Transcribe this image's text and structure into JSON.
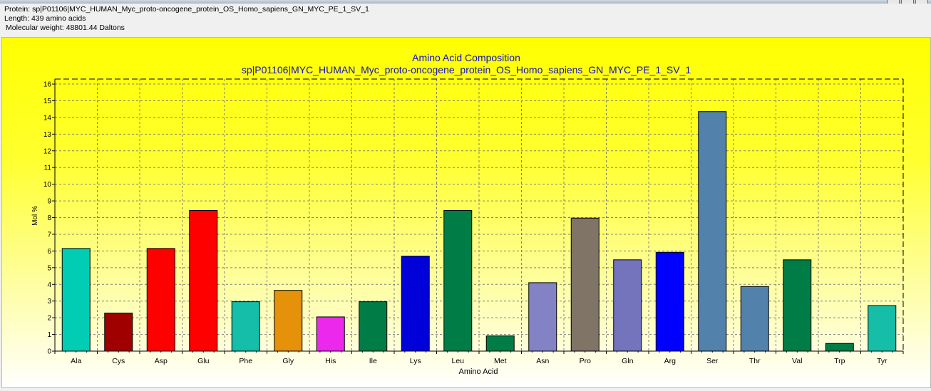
{
  "window": {
    "info": {
      "protein_line": "Protein: sp|P01106|MYC_HUMAN_Myc_proto-oncogene_protein_OS_Homo_sapiens_GN_MYC_PE_1_SV_1",
      "length_line": "Length: 439 amino acids",
      "weight_line": "Molecular weight: 48801.44 Daltons"
    }
  },
  "chart_data": {
    "type": "bar",
    "title": "Amino Acid Composition",
    "subtitle": "sp|P01106|MYC_HUMAN_Myc_proto-oncogene_protein_OS_Homo_sapiens_GN_MYC_PE_1_SV_1",
    "xlabel": "Amino Acid",
    "ylabel": "Mol %",
    "ylim": [
      0,
      16.3
    ],
    "yticks": [
      0,
      1,
      2,
      3,
      4,
      5,
      6,
      7,
      8,
      9,
      10,
      11,
      12,
      13,
      14,
      15,
      16
    ],
    "grid": true,
    "legend": "none",
    "categories": [
      "Ala",
      "Cys",
      "Asp",
      "Glu",
      "Phe",
      "Gly",
      "His",
      "Ile",
      "Lys",
      "Leu",
      "Met",
      "Asn",
      "Pro",
      "Gln",
      "Arg",
      "Ser",
      "Thr",
      "Val",
      "Trp",
      "Tyr"
    ],
    "values": [
      6.15,
      2.28,
      6.15,
      8.43,
      2.96,
      3.64,
      2.05,
      2.96,
      5.69,
      8.43,
      0.91,
      4.1,
      7.97,
      5.47,
      5.92,
      14.35,
      3.87,
      5.47,
      0.46,
      2.73
    ],
    "colors": [
      "#00cdb4",
      "#a00000",
      "#ff0000",
      "#ff0000",
      "#15bea8",
      "#e5920a",
      "#ec28ec",
      "#007d46",
      "#0000d8",
      "#007d46",
      "#007d46",
      "#8282c4",
      "#7f7466",
      "#7474bc",
      "#0000ff",
      "#5282ac",
      "#5282ac",
      "#007d46",
      "#007d46",
      "#16bea8"
    ]
  }
}
